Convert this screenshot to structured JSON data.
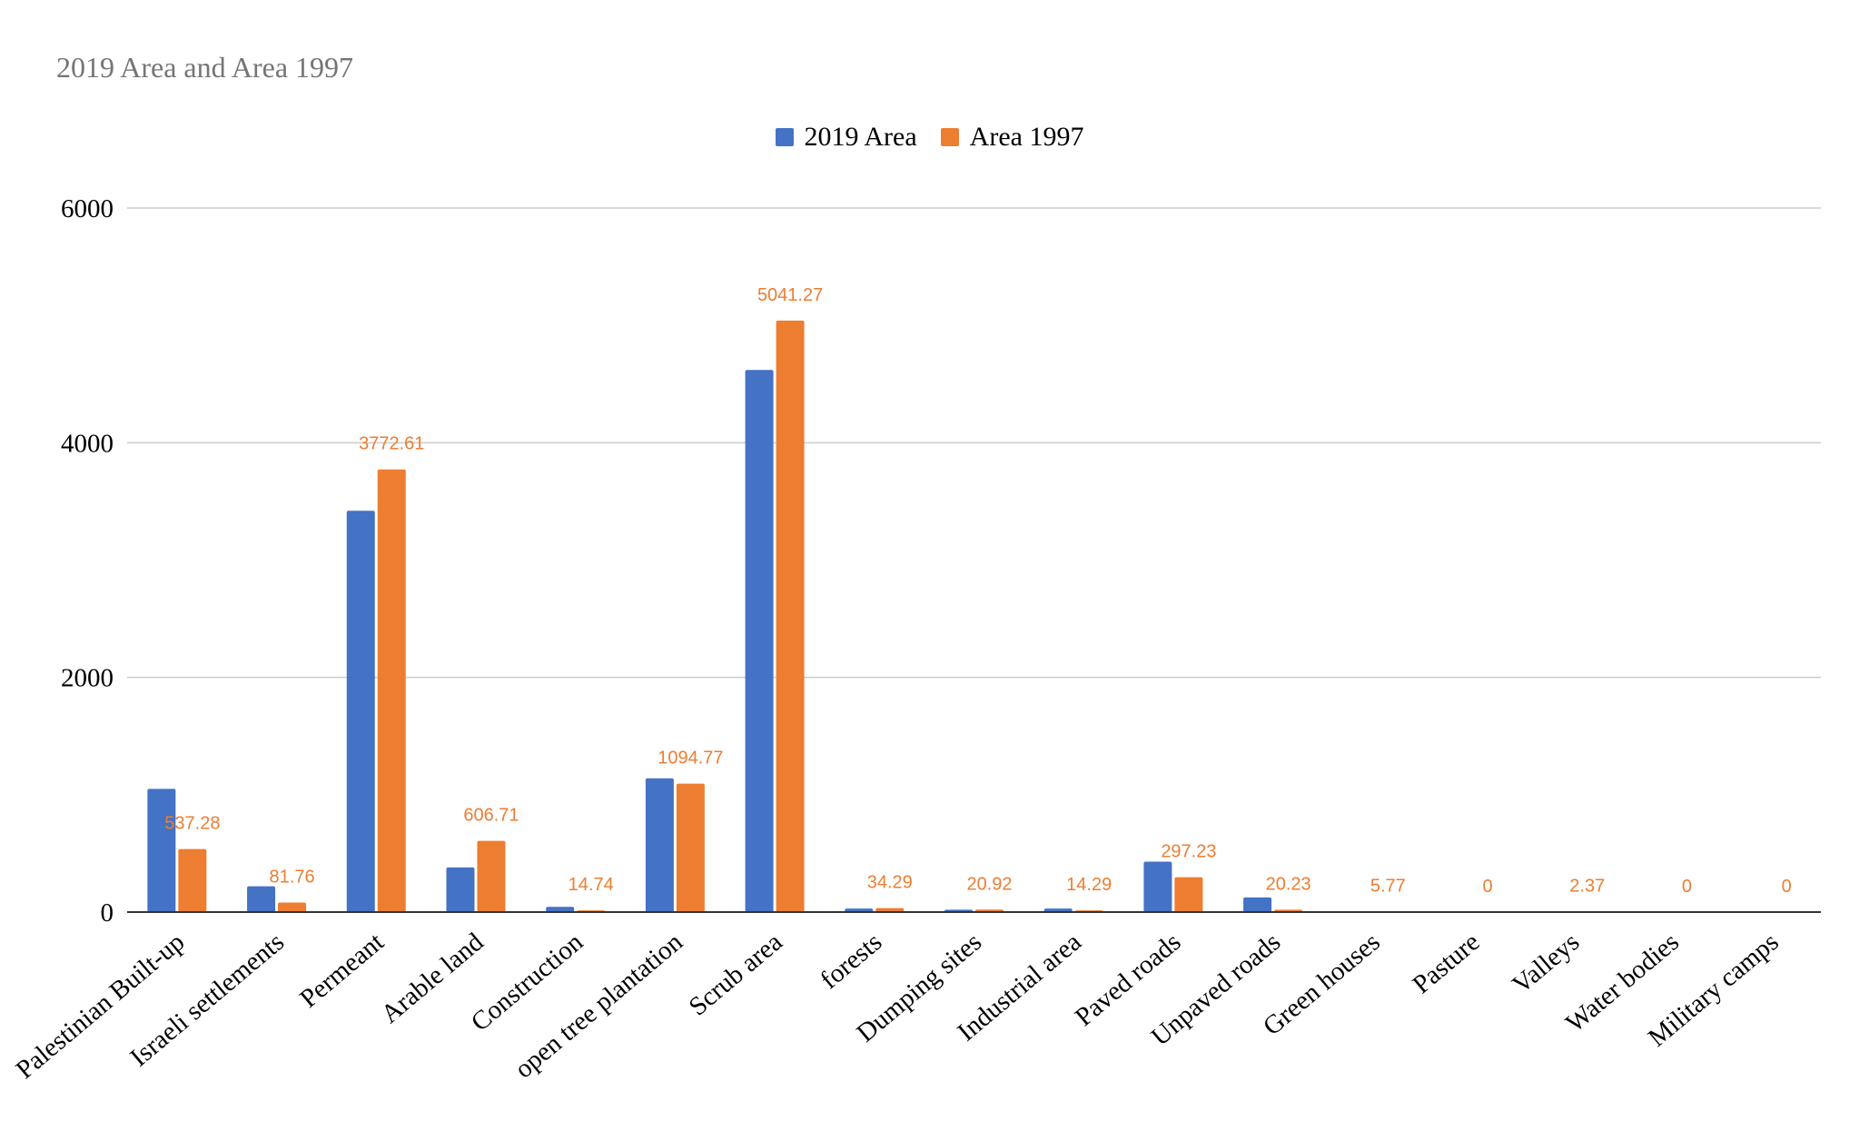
{
  "chart_data": {
    "type": "bar",
    "title": "2019 Area and Area 1997",
    "xlabel": "",
    "ylabel": "",
    "ylim": [
      0,
      6000
    ],
    "yticks": [
      0,
      2000,
      4000,
      6000
    ],
    "grid": true,
    "legend_position": "top-center",
    "categories": [
      "Palestinian Built-up",
      "Israeli settlements",
      "Permeant",
      "Arable land",
      "Construction",
      "open tree plantation",
      "Scrub area",
      "forests",
      "Dumping sites",
      "Industrial area",
      "Paved roads",
      "Unpaved roads",
      "Green houses",
      "Pasture",
      "Valleys",
      "Water bodies",
      "Military camps"
    ],
    "series": [
      {
        "name": "2019 Area",
        "color": "#4472C4",
        "values": [
          1050,
          220,
          3420,
          380,
          45,
          1140,
          4620,
          30,
          20,
          30,
          430,
          125,
          5,
          0,
          2,
          0,
          0
        ]
      },
      {
        "name": "Area 1997",
        "color": "#ED7D31",
        "values": [
          537.28,
          81.76,
          3772.61,
          606.71,
          14.74,
          1094.77,
          5041.27,
          34.29,
          20.92,
          14.29,
          297.23,
          20.23,
          5.77,
          0,
          2.37,
          0,
          0
        ],
        "data_labels": [
          "537.28",
          "81.76",
          "3772.61",
          "606.71",
          "14.74",
          "1094.77",
          "5041.27",
          "34.29",
          "20.92",
          "14.29",
          "297.23",
          "20.23",
          "5.77",
          "0",
          "2.37",
          "0",
          "0"
        ]
      }
    ]
  }
}
